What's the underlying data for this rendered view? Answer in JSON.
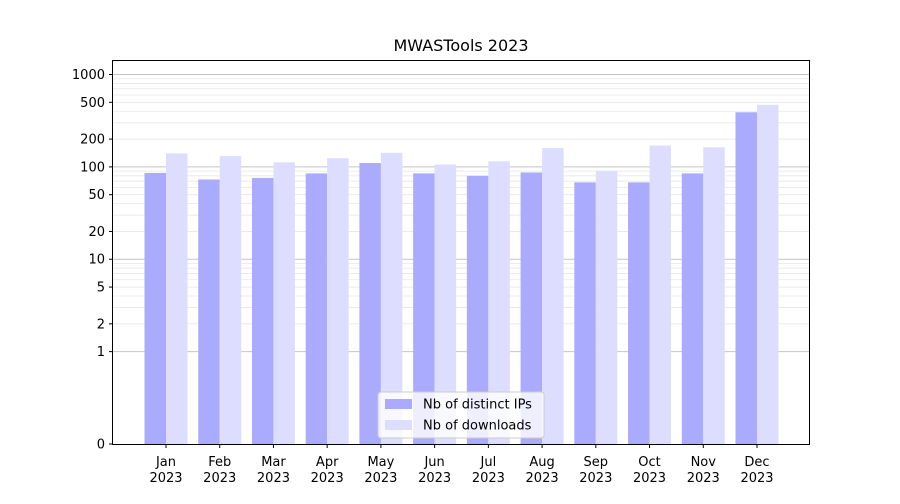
{
  "chart_data": {
    "type": "bar",
    "title": "MWASTools 2023",
    "xlabel": "",
    "ylabel": "",
    "yscale": "symlog",
    "grid": true,
    "legend_position": "bottom-center",
    "categories": [
      [
        "Jan",
        "2023"
      ],
      [
        "Feb",
        "2023"
      ],
      [
        "Mar",
        "2023"
      ],
      [
        "Apr",
        "2023"
      ],
      [
        "May",
        "2023"
      ],
      [
        "Jun",
        "2023"
      ],
      [
        "Jul",
        "2023"
      ],
      [
        "Aug",
        "2023"
      ],
      [
        "Sep",
        "2023"
      ],
      [
        "Oct",
        "2023"
      ],
      [
        "Nov",
        "2023"
      ],
      [
        "Dec",
        "2023"
      ]
    ],
    "y_ticks": [
      {
        "value": 0,
        "label": "0"
      },
      {
        "value": 1,
        "label": "1"
      },
      {
        "value": 2,
        "label": "2"
      },
      {
        "value": 5,
        "label": "5"
      },
      {
        "value": 10,
        "label": "10"
      },
      {
        "value": 20,
        "label": "20"
      },
      {
        "value": 50,
        "label": "50"
      },
      {
        "value": 100,
        "label": "100"
      },
      {
        "value": 200,
        "label": "200"
      },
      {
        "value": 500,
        "label": "500"
      },
      {
        "value": 1000,
        "label": "1000"
      }
    ],
    "ylim": [
      0,
      1400
    ],
    "series": [
      {
        "name": "Nb of distinct IPs",
        "color": "#aaaaff",
        "values": [
          86,
          73,
          76,
          85,
          110,
          85,
          80,
          87,
          68,
          68,
          85,
          390
        ]
      },
      {
        "name": "Nb of downloads",
        "color": "#ddddff",
        "values": [
          140,
          131,
          112,
          124,
          142,
          106,
          115,
          160,
          90,
          170,
          163,
          470
        ]
      }
    ]
  }
}
